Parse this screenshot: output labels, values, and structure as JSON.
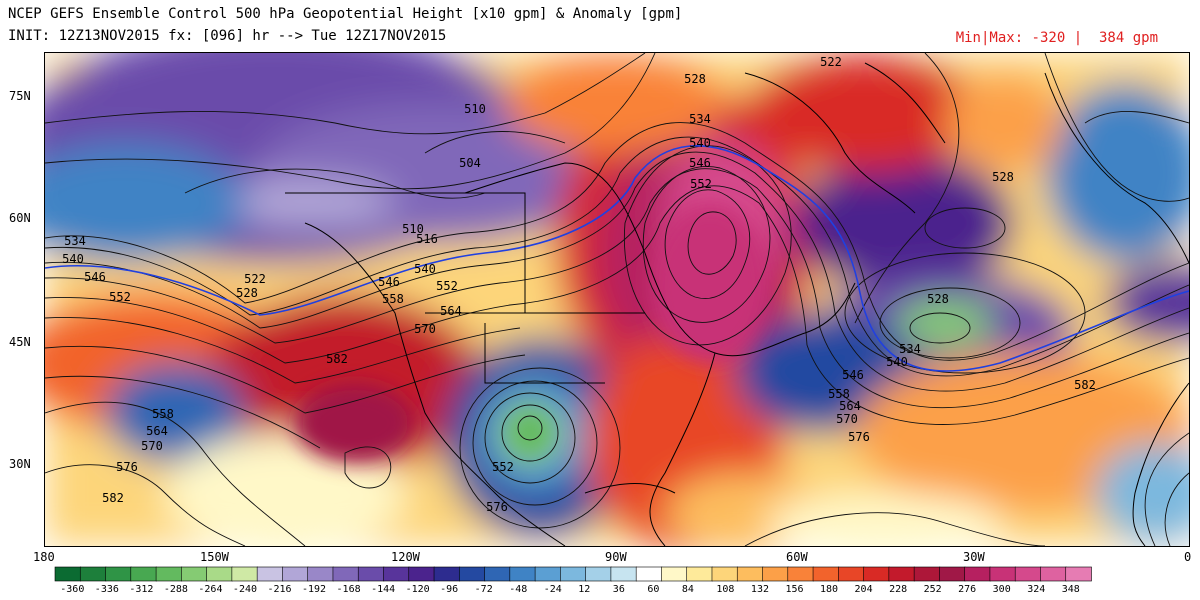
{
  "header": {
    "title": "NCEP GEFS Ensemble Control 500 hPa Geopotential Height [x10 gpm] & Anomaly [gpm]",
    "init_line": "INIT: 12Z13NOV2015 fx: [096] hr --> Tue 12Z17NOV2015",
    "minmax": "Min|Max: -320 |  384 gpm"
  },
  "axes": {
    "lat_labels": [
      "75N",
      "60N",
      "45N",
      "30N"
    ],
    "lon_labels": [
      "180",
      "150W",
      "120W",
      "90W",
      "60W",
      "30W",
      "0"
    ]
  },
  "map": {
    "contour_labels": [
      "534",
      "540",
      "546",
      "552",
      "522",
      "528",
      "510",
      "504",
      "510",
      "516",
      "540",
      "546",
      "552",
      "558",
      "564",
      "570",
      "582",
      "558",
      "564",
      "570",
      "576",
      "582",
      "522",
      "528",
      "534",
      "540",
      "546",
      "552",
      "528",
      "528",
      "534",
      "540",
      "546",
      "558",
      "564",
      "570",
      "576",
      "582",
      "552",
      "576"
    ]
  },
  "colorbar": {
    "labels": [
      "-360",
      "-336",
      "-312",
      "-288",
      "-264",
      "-240",
      "-216",
      "-192",
      "-168",
      "-144",
      "-120",
      "-96",
      "-72",
      "-48",
      "-24",
      "12",
      "36",
      "60",
      "84",
      "108",
      "132",
      "156",
      "180",
      "204",
      "228",
      "252",
      "276",
      "300",
      "324",
      "348"
    ],
    "colors": [
      "#0b6b32",
      "#1d7f3b",
      "#2f9446",
      "#48a851",
      "#63ba5f",
      "#85cb73",
      "#a9da88",
      "#cfe9a5",
      "#c9c3e3",
      "#b1a6d7",
      "#9987c8",
      "#8068b9",
      "#6a4caa",
      "#58349b",
      "#4b238d",
      "#2d2c8f",
      "#2449a1",
      "#2f66b4",
      "#3f83c5",
      "#5b9fd3",
      "#7cb8de",
      "#a4d0e8",
      "#c7e4f0",
      "#ffffff",
      "#fff8c8",
      "#feea9a",
      "#fdd57a",
      "#fdbd5e",
      "#fca048",
      "#f98239",
      "#f2632c",
      "#e84627",
      "#d92a25",
      "#c31a2c",
      "#ad1739",
      "#a01847",
      "#b62060",
      "#c83277",
      "#d5498c",
      "#de62a0",
      "#e67cb3"
    ]
  }
}
